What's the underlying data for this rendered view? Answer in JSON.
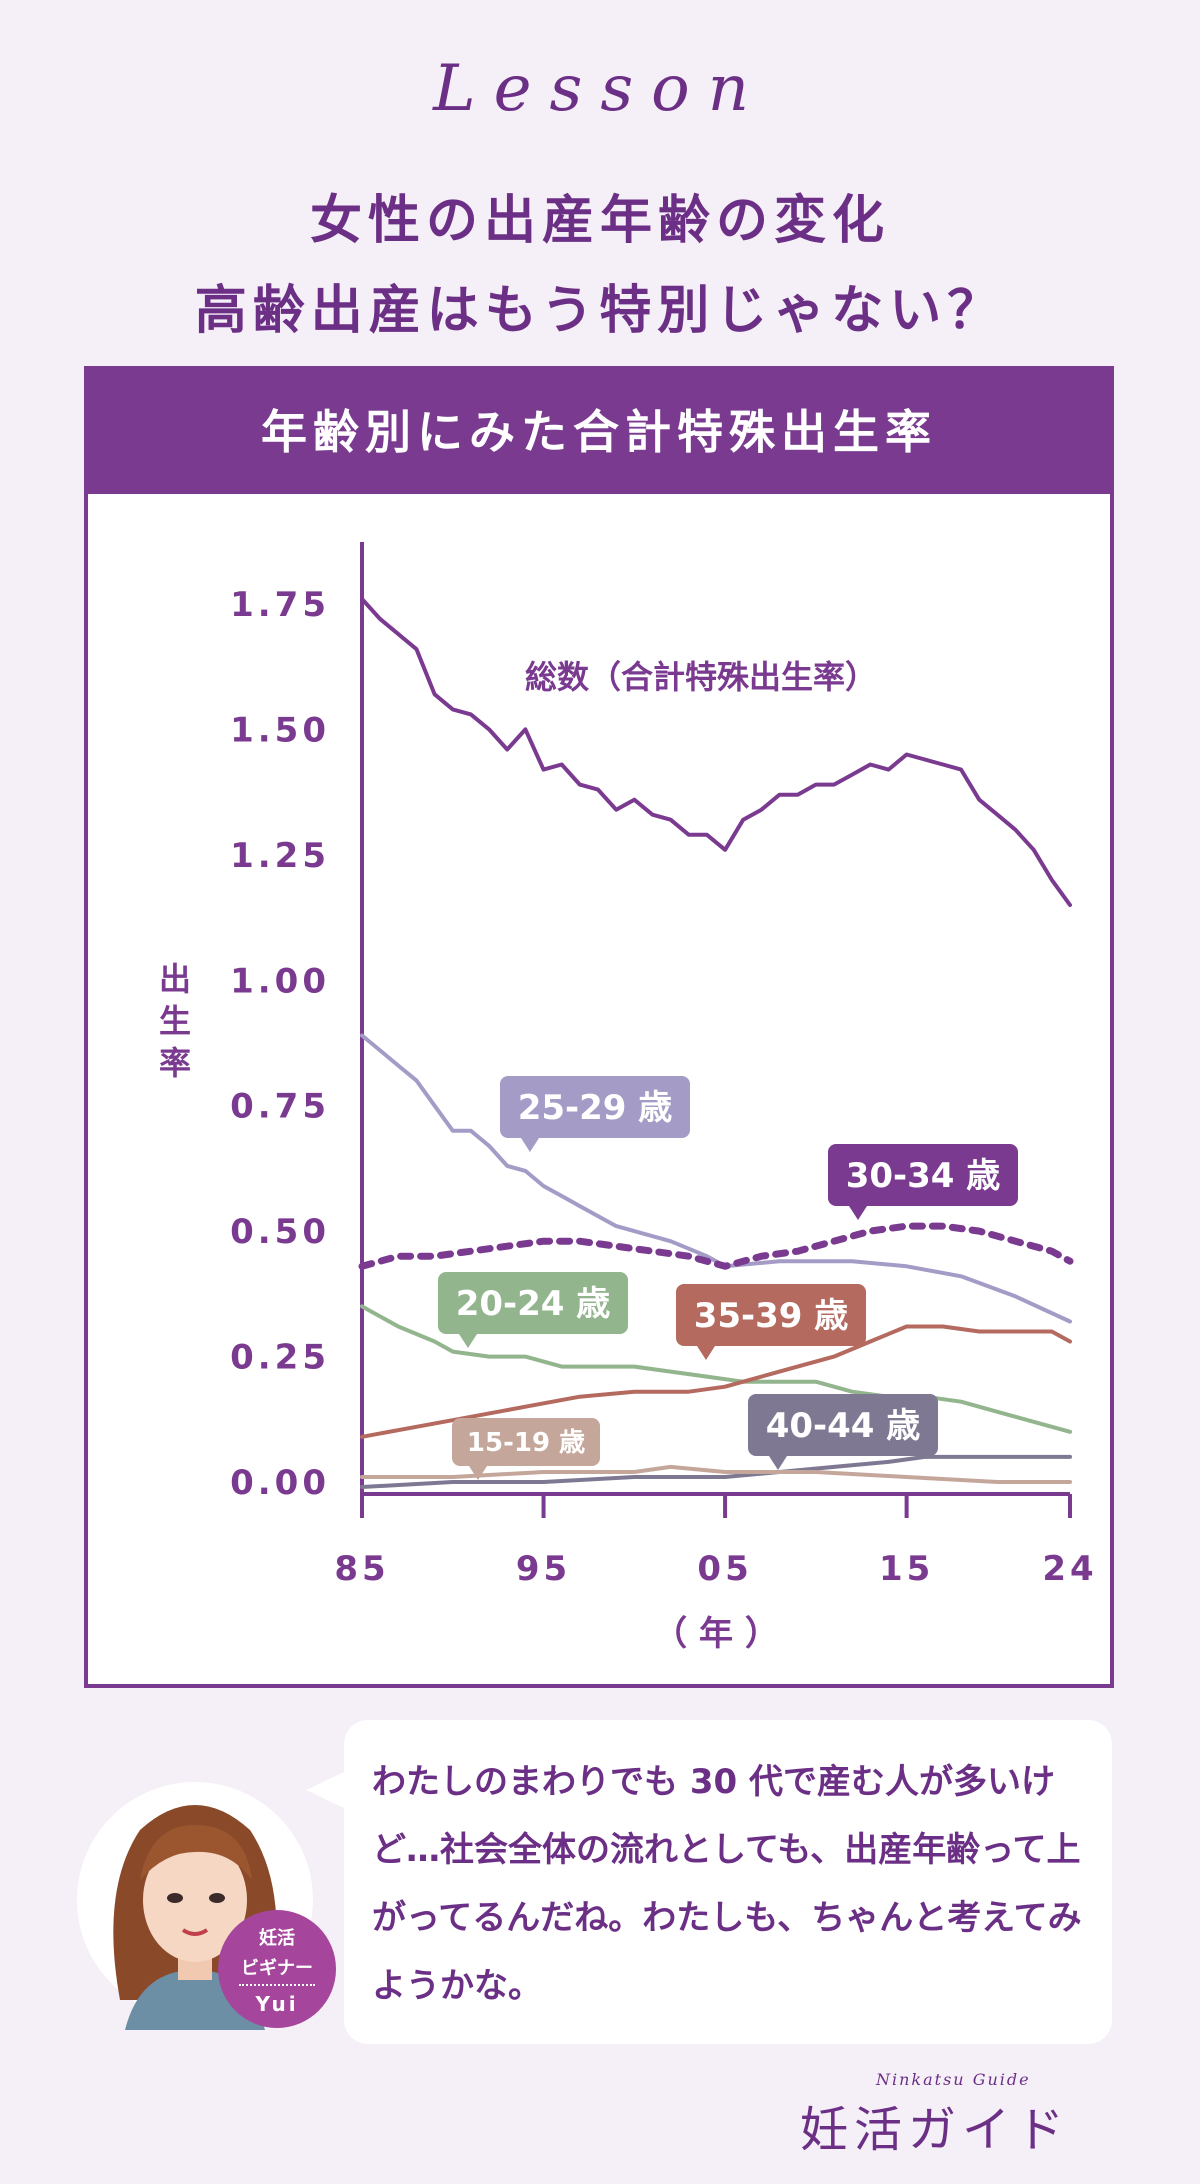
{
  "header": {
    "lesson": "Lesson",
    "title_line1": "女性の出産年齢の変化",
    "title_line2": "高齢出産はもう特別じゃない？"
  },
  "panel": {
    "title": "年齢別にみた合計特殊出生率"
  },
  "chart_data": {
    "type": "line",
    "ylabel": "出生率",
    "xlabel": "（ 年 ）",
    "ylim": [
      0,
      1.75
    ],
    "xlim": [
      1985,
      2024
    ],
    "x_ticks": [
      1985,
      1995,
      2005,
      2015,
      2024
    ],
    "x_tick_labels": [
      "85",
      "95",
      "05",
      "15",
      "24"
    ],
    "y_ticks": [
      0,
      0.25,
      0.5,
      0.75,
      1.0,
      1.25,
      1.5,
      1.75
    ],
    "y_tick_labels": [
      "0.00",
      "0.25",
      "0.50",
      "0.75",
      "1.00",
      "1.25",
      "1.50",
      "1.75"
    ],
    "series": [
      {
        "name": "総数（合計特殊出生率）",
        "color": "#7a3a90",
        "style": "solid",
        "points": [
          [
            1985,
            1.76
          ],
          [
            1986,
            1.72
          ],
          [
            1987,
            1.69
          ],
          [
            1988,
            1.66
          ],
          [
            1989,
            1.57
          ],
          [
            1990,
            1.54
          ],
          [
            1991,
            1.53
          ],
          [
            1992,
            1.5
          ],
          [
            1993,
            1.46
          ],
          [
            1994,
            1.5
          ],
          [
            1995,
            1.42
          ],
          [
            1996,
            1.43
          ],
          [
            1997,
            1.39
          ],
          [
            1998,
            1.38
          ],
          [
            1999,
            1.34
          ],
          [
            2000,
            1.36
          ],
          [
            2001,
            1.33
          ],
          [
            2002,
            1.32
          ],
          [
            2003,
            1.29
          ],
          [
            2004,
            1.29
          ],
          [
            2005,
            1.26
          ],
          [
            2006,
            1.32
          ],
          [
            2007,
            1.34
          ],
          [
            2008,
            1.37
          ],
          [
            2009,
            1.37
          ],
          [
            2010,
            1.39
          ],
          [
            2011,
            1.39
          ],
          [
            2012,
            1.41
          ],
          [
            2013,
            1.43
          ],
          [
            2014,
            1.42
          ],
          [
            2015,
            1.45
          ],
          [
            2016,
            1.44
          ],
          [
            2017,
            1.43
          ],
          [
            2018,
            1.42
          ],
          [
            2019,
            1.36
          ],
          [
            2020,
            1.33
          ],
          [
            2021,
            1.3
          ],
          [
            2022,
            1.26
          ],
          [
            2023,
            1.2
          ],
          [
            2024,
            1.15
          ]
        ]
      },
      {
        "name": "25-29歳",
        "color": "#a49bc6",
        "style": "solid",
        "points": [
          [
            1985,
            0.89
          ],
          [
            1986,
            0.86
          ],
          [
            1987,
            0.83
          ],
          [
            1988,
            0.8
          ],
          [
            1989,
            0.75
          ],
          [
            1990,
            0.7
          ],
          [
            1991,
            0.7
          ],
          [
            1992,
            0.67
          ],
          [
            1993,
            0.63
          ],
          [
            1994,
            0.62
          ],
          [
            1995,
            0.59
          ],
          [
            1996,
            0.57
          ],
          [
            1997,
            0.55
          ],
          [
            1998,
            0.53
          ],
          [
            1999,
            0.51
          ],
          [
            2000,
            0.5
          ],
          [
            2002,
            0.48
          ],
          [
            2004,
            0.45
          ],
          [
            2005,
            0.43
          ],
          [
            2008,
            0.44
          ],
          [
            2010,
            0.44
          ],
          [
            2012,
            0.44
          ],
          [
            2015,
            0.43
          ],
          [
            2018,
            0.41
          ],
          [
            2021,
            0.37
          ],
          [
            2024,
            0.32
          ]
        ]
      },
      {
        "name": "30-34歳",
        "color": "#7a3a90",
        "style": "dotted",
        "points": [
          [
            1985,
            0.43
          ],
          [
            1987,
            0.45
          ],
          [
            1989,
            0.45
          ],
          [
            1991,
            0.46
          ],
          [
            1993,
            0.47
          ],
          [
            1995,
            0.48
          ],
          [
            1997,
            0.48
          ],
          [
            1999,
            0.47
          ],
          [
            2001,
            0.46
          ],
          [
            2003,
            0.45
          ],
          [
            2005,
            0.43
          ],
          [
            2007,
            0.45
          ],
          [
            2009,
            0.46
          ],
          [
            2011,
            0.48
          ],
          [
            2013,
            0.5
          ],
          [
            2015,
            0.51
          ],
          [
            2017,
            0.51
          ],
          [
            2019,
            0.5
          ],
          [
            2021,
            0.48
          ],
          [
            2023,
            0.46
          ],
          [
            2024,
            0.44
          ]
        ]
      },
      {
        "name": "20-24歳",
        "color": "#93b58e",
        "style": "solid",
        "points": [
          [
            1985,
            0.35
          ],
          [
            1987,
            0.31
          ],
          [
            1989,
            0.28
          ],
          [
            1990,
            0.26
          ],
          [
            1992,
            0.25
          ],
          [
            1994,
            0.25
          ],
          [
            1996,
            0.23
          ],
          [
            1998,
            0.23
          ],
          [
            2000,
            0.23
          ],
          [
            2002,
            0.22
          ],
          [
            2004,
            0.21
          ],
          [
            2006,
            0.2
          ],
          [
            2008,
            0.2
          ],
          [
            2010,
            0.2
          ],
          [
            2012,
            0.18
          ],
          [
            2014,
            0.17
          ],
          [
            2016,
            0.17
          ],
          [
            2018,
            0.16
          ],
          [
            2020,
            0.14
          ],
          [
            2022,
            0.12
          ],
          [
            2024,
            0.1
          ]
        ]
      },
      {
        "name": "35-39歳",
        "color": "#b46a5e",
        "style": "solid",
        "points": [
          [
            1985,
            0.09
          ],
          [
            1988,
            0.11
          ],
          [
            1991,
            0.13
          ],
          [
            1994,
            0.15
          ],
          [
            1997,
            0.17
          ],
          [
            2000,
            0.18
          ],
          [
            2003,
            0.18
          ],
          [
            2005,
            0.19
          ],
          [
            2008,
            0.22
          ],
          [
            2011,
            0.25
          ],
          [
            2013,
            0.28
          ],
          [
            2015,
            0.31
          ],
          [
            2017,
            0.31
          ],
          [
            2019,
            0.3
          ],
          [
            2021,
            0.3
          ],
          [
            2023,
            0.3
          ],
          [
            2024,
            0.28
          ]
        ]
      },
      {
        "name": "40-44歳",
        "color": "#7f7892",
        "style": "solid",
        "points": [
          [
            1985,
            -0.01
          ],
          [
            1990,
            0.0
          ],
          [
            1995,
            0.0
          ],
          [
            2000,
            0.01
          ],
          [
            2005,
            0.01
          ],
          [
            2008,
            0.02
          ],
          [
            2011,
            0.03
          ],
          [
            2014,
            0.04
          ],
          [
            2016,
            0.05
          ],
          [
            2020,
            0.05
          ],
          [
            2024,
            0.05
          ]
        ]
      },
      {
        "name": "15-19歳",
        "color": "#c4a69b",
        "style": "solid",
        "points": [
          [
            1985,
            0.01
          ],
          [
            1990,
            0.01
          ],
          [
            1995,
            0.02
          ],
          [
            2000,
            0.02
          ],
          [
            2002,
            0.03
          ],
          [
            2005,
            0.02
          ],
          [
            2010,
            0.02
          ],
          [
            2015,
            0.01
          ],
          [
            2020,
            0.0
          ],
          [
            2024,
            0.0
          ]
        ]
      }
    ],
    "annotations": [
      {
        "text": "総数（合計特殊出生率）",
        "series": 0
      },
      {
        "text": "25-29 歳",
        "series": 1,
        "color": "#a49bc6"
      },
      {
        "text": "30-34 歳",
        "series": 2,
        "color": "#7a3a90"
      },
      {
        "text": "20-24 歳",
        "series": 3,
        "color": "#93b58e"
      },
      {
        "text": "35-39 歳",
        "series": 4,
        "color": "#b46a5e"
      },
      {
        "text": "40-44 歳",
        "series": 5,
        "color": "#7f7892"
      },
      {
        "text": "15-19 歳",
        "series": 6,
        "color": "#c4a69b"
      }
    ]
  },
  "comment": {
    "text": "わたしのまわりでも 30 代で産む人が多いけど…社会全体の流れとしても、出産年齢って上がってるんだね。わたしも、ちゃんと考えてみようかな。",
    "badge_line1": "妊活",
    "badge_line2": "ビギナー",
    "badge_name": "Yui"
  },
  "footer": {
    "logo_small": "Ninkatsu Guide",
    "logo": "妊活ガイド"
  }
}
